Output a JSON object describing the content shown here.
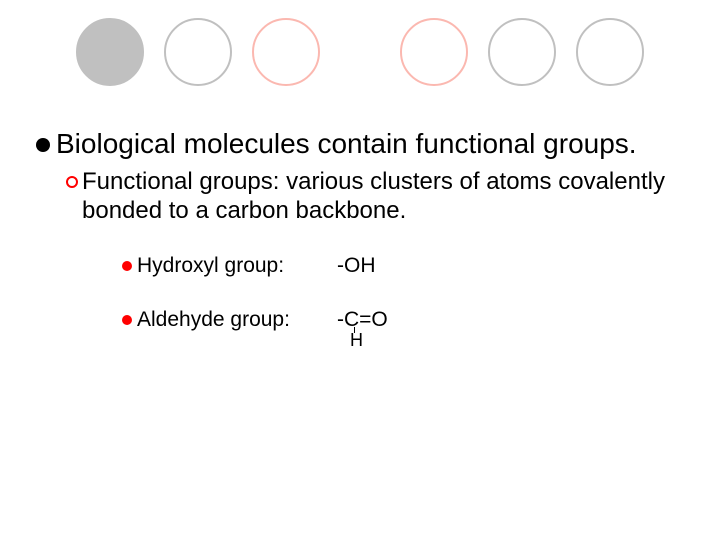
{
  "decor": {
    "circles": [
      {
        "style": "filled-gray"
      },
      {
        "style": "outline-gray"
      },
      {
        "style": "outline-red"
      },
      {
        "style": "spacer"
      },
      {
        "style": "outline-red"
      },
      {
        "style": "outline-gray"
      },
      {
        "style": "outline-gray"
      }
    ]
  },
  "bullets": {
    "l1": {
      "text": "Biological molecules contain functional groups."
    },
    "l2": {
      "text": "Functional groups: various clusters of atoms covalently bonded to a carbon backbone."
    },
    "l3": [
      {
        "label": "Hydroxyl group:",
        "formula_main": "-OH",
        "formula_sub": ""
      },
      {
        "label": "Aldehyde group:",
        "formula_main": "-C=O",
        "formula_sub": "H"
      }
    ]
  },
  "colors": {
    "bullet_l1": "#000000",
    "bullet_l2_ring": "#ff0000",
    "bullet_l3": "#ff0000",
    "circle_gray": "#c0c0c0",
    "circle_red": "#fbb8b0"
  }
}
